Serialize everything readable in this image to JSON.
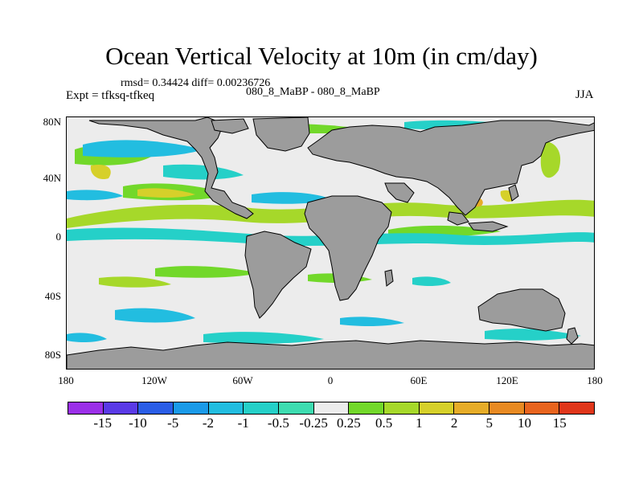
{
  "title": "Ocean Vertical Velocity at 10m (in cm/day)",
  "stats": "rmsd= 0.34424 diff= 0.00236726",
  "experiment": "Expt = tfksq-tfkeq",
  "case_pair": "080_8_MaBP - 080_8_MaBP",
  "season": "JJA",
  "map": {
    "projection": "cylindrical equidistant",
    "lon_range": [
      -180,
      180
    ],
    "lat_range": [
      -90,
      90
    ],
    "x_ticks": [
      "180",
      "120W",
      "60W",
      "0",
      "60E",
      "120E",
      "180"
    ],
    "y_ticks": [
      "80N",
      "40N",
      "0",
      "40S",
      "80S"
    ],
    "land_color": "#9c9c9c",
    "neutral_color": "#ececec"
  },
  "colorbar": {
    "labels": [
      "-15",
      "-10",
      "-5",
      "-2",
      "-1",
      "-0.5",
      "-0.25",
      "0.25",
      "0.5",
      "1",
      "2",
      "5",
      "10",
      "15"
    ],
    "colors": [
      "#9b30e8",
      "#5a3ae6",
      "#2a5de6",
      "#1a9ae8",
      "#22bde0",
      "#25d0c8",
      "#3ddcb0",
      "#ececec",
      "#72d82a",
      "#a6d82a",
      "#d6d02a",
      "#e6ac28",
      "#e88a22",
      "#e8641e",
      "#e0361a"
    ]
  }
}
